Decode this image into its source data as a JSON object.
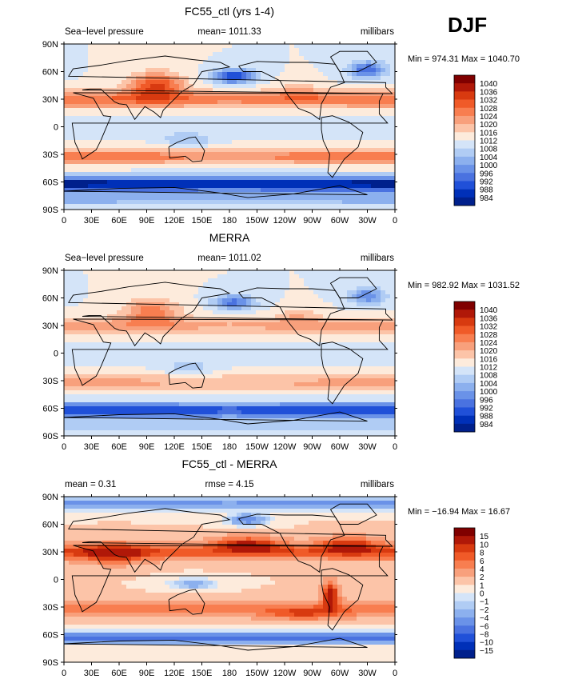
{
  "season": "DJF",
  "chart_data": [
    {
      "type": "heatmap",
      "title": "FC55_ctl (yrs 1-4)",
      "left_label": "Sea−level pressure",
      "center_label": "mean= 1011.33",
      "right_label": "millibars",
      "min_max": "Min = 974.31  Max = 1040.70",
      "x_ticks": [
        "0",
        "30E",
        "60E",
        "90E",
        "120E",
        "150E",
        "180",
        "150W",
        "120W",
        "90W",
        "60W",
        "30W",
        "0"
      ],
      "y_ticks": [
        "90N",
        "60N",
        "30N",
        "0",
        "30S",
        "60S",
        "90S"
      ],
      "levels": [
        "1040",
        "1036",
        "1032",
        "1028",
        "1024",
        "1020",
        "1016",
        "1012",
        "1008",
        "1004",
        "1000",
        "996",
        "992",
        "988",
        "984"
      ],
      "colors": [
        "#800000",
        "#b01808",
        "#d83a10",
        "#f05a28",
        "#f87e50",
        "#f8a07c",
        "#fcc4a8",
        "#fdebdc",
        "#d4e4f8",
        "#b0ccf4",
        "#8cb0ee",
        "#6a92e8",
        "#4a72e0",
        "#2050d8",
        "#0030b8",
        "#00208c"
      ],
      "field": "slp_model"
    },
    {
      "type": "heatmap",
      "title": "MERRA",
      "left_label": "Sea−level pressure",
      "center_label": "mean= 1011.02",
      "right_label": "millibars",
      "min_max": "Min = 982.92  Max = 1031.52",
      "x_ticks": [
        "0",
        "30E",
        "60E",
        "90E",
        "120E",
        "150E",
        "180",
        "150W",
        "120W",
        "90W",
        "60W",
        "30W",
        "0"
      ],
      "y_ticks": [
        "90N",
        "60N",
        "30N",
        "0",
        "30S",
        "60S",
        "90S"
      ],
      "levels": [
        "1040",
        "1036",
        "1032",
        "1028",
        "1024",
        "1020",
        "1016",
        "1012",
        "1008",
        "1004",
        "1000",
        "996",
        "992",
        "988",
        "984"
      ],
      "colors": [
        "#800000",
        "#b01808",
        "#d83a10",
        "#f05a28",
        "#f87e50",
        "#f8a07c",
        "#fcc4a8",
        "#fdebdc",
        "#d4e4f8",
        "#b0ccf4",
        "#8cb0ee",
        "#6a92e8",
        "#4a72e0",
        "#2050d8",
        "#0030b8",
        "#00208c"
      ],
      "field": "slp_obs"
    },
    {
      "type": "heatmap",
      "title": "FC55_ctl - MERRA",
      "left_label": "mean =     0.31",
      "center_label": "rmse =     4.15",
      "right_label": "millibars",
      "min_max": "Min = −16.94  Max =   16.67",
      "x_ticks": [
        "0",
        "30E",
        "60E",
        "90E",
        "120E",
        "150E",
        "180",
        "150W",
        "120W",
        "90W",
        "60W",
        "30W",
        "0"
      ],
      "y_ticks": [
        "90N",
        "60N",
        "30N",
        "0",
        "30S",
        "60S",
        "90S"
      ],
      "levels": [
        "15",
        "10",
        "8",
        "6",
        "4",
        "2",
        "1",
        "0",
        "−1",
        "−2",
        "−4",
        "−6",
        "−8",
        "−10",
        "−15"
      ],
      "colors": [
        "#800000",
        "#b01808",
        "#d83a10",
        "#f05a28",
        "#f87e50",
        "#f8a07c",
        "#fcc4a8",
        "#fdebdc",
        "#d4e4f8",
        "#b0ccf4",
        "#8cb0ee",
        "#6a92e8",
        "#4a72e0",
        "#2050d8",
        "#0030b8",
        "#00208c"
      ],
      "field": "slp_diff"
    }
  ]
}
